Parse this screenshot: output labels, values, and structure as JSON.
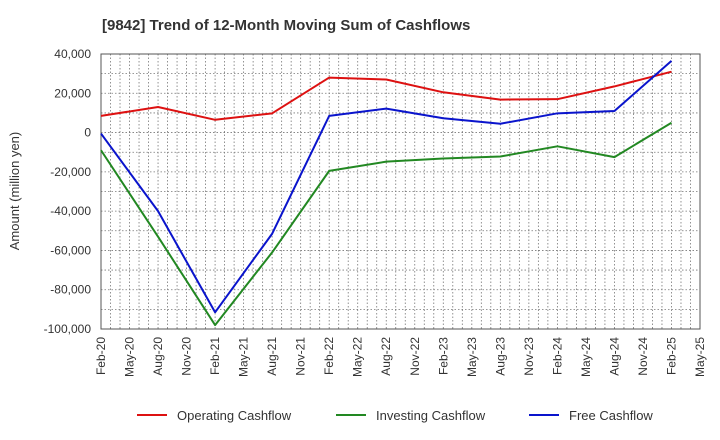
{
  "chart_data": {
    "type": "line",
    "title": "[9842]  Trend of 12-Month Moving Sum of Cashflows",
    "ylabel": "Amount (million yen)",
    "xlabel": "",
    "x": [
      "Feb-20",
      "May-20",
      "Aug-20",
      "Nov-20",
      "Feb-21",
      "May-21",
      "Aug-21",
      "Nov-21",
      "Feb-22",
      "May-22",
      "Aug-22",
      "Nov-22",
      "Feb-23",
      "May-23",
      "Aug-23",
      "Nov-23",
      "Feb-24",
      "May-24",
      "Aug-24",
      "Nov-24",
      "Feb-25",
      "May-25"
    ],
    "ylim": [
      -100000,
      40000
    ],
    "yticks": [
      40000,
      20000,
      0,
      -20000,
      -40000,
      -60000,
      -80000,
      -100000
    ],
    "ytick_labels": [
      "40,000",
      "20,000",
      "0",
      "-20,000",
      "-40,000",
      "-60,000",
      "-80,000",
      "-100,000"
    ],
    "grid": true,
    "legend_position": "bottom",
    "series": [
      {
        "name": "Operating Cashflow",
        "color": "#dd1111",
        "points": [
          [
            "Feb-20",
            8500
          ],
          [
            "Aug-20",
            13000
          ],
          [
            "Feb-21",
            6500
          ],
          [
            "Aug-21",
            9800
          ],
          [
            "Feb-22",
            28000
          ],
          [
            "Aug-22",
            27000
          ],
          [
            "Feb-23",
            20500
          ],
          [
            "Aug-23",
            16800
          ],
          [
            "Feb-24",
            17000
          ],
          [
            "Aug-24",
            23500
          ],
          [
            "Feb-25",
            31000
          ]
        ]
      },
      {
        "name": "Investing Cashflow",
        "color": "#228822",
        "points": [
          [
            "Feb-20",
            -9000
          ],
          [
            "Aug-20",
            -53000
          ],
          [
            "Feb-21",
            -98000
          ],
          [
            "Aug-21",
            -61000
          ],
          [
            "Feb-22",
            -19500
          ],
          [
            "Aug-22",
            -14800
          ],
          [
            "Feb-23",
            -13200
          ],
          [
            "Aug-23",
            -12200
          ],
          [
            "Feb-24",
            -7000
          ],
          [
            "Aug-24",
            -12500
          ],
          [
            "Feb-25",
            5000
          ]
        ]
      },
      {
        "name": "Free Cashflow",
        "color": "#0a14cc",
        "points": [
          [
            "Feb-20",
            -500
          ],
          [
            "Aug-20",
            -40000
          ],
          [
            "Feb-21",
            -91500
          ],
          [
            "Aug-21",
            -51500
          ],
          [
            "Feb-22",
            8500
          ],
          [
            "Aug-22",
            12200
          ],
          [
            "Feb-23",
            7300
          ],
          [
            "Aug-23",
            4500
          ],
          [
            "Feb-24",
            9800
          ],
          [
            "Aug-24",
            11000
          ],
          [
            "Feb-25",
            36500
          ]
        ]
      }
    ]
  }
}
